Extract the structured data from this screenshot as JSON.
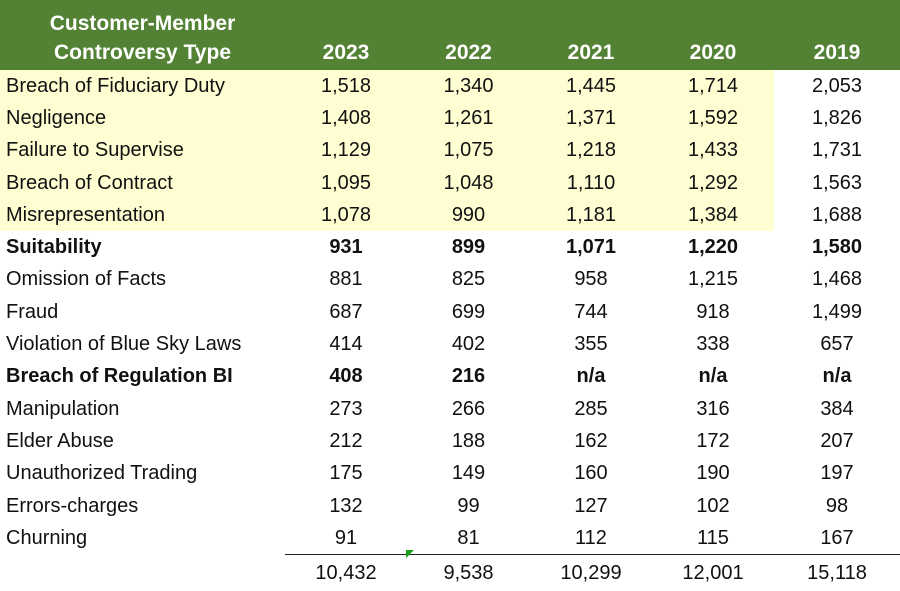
{
  "header": {
    "title_line1": "Customer-Member",
    "title_line2": "Controversy Type",
    "years": [
      "2023",
      "2022",
      "2021",
      "2020",
      "2019"
    ]
  },
  "rows": [
    {
      "label": "Breach of Fiduciary Duty",
      "values": [
        "1,518",
        "1,340",
        "1,445",
        "1,714",
        "2,053"
      ]
    },
    {
      "label": "Negligence",
      "values": [
        "1,408",
        "1,261",
        "1,371",
        "1,592",
        "1,826"
      ]
    },
    {
      "label": "Failure to Supervise",
      "values": [
        "1,129",
        "1,075",
        "1,218",
        "1,433",
        "1,731"
      ]
    },
    {
      "label": "Breach of Contract",
      "values": [
        "1,095",
        "1,048",
        "1,110",
        "1,292",
        "1,563"
      ]
    },
    {
      "label": "Misrepresentation",
      "values": [
        "1,078",
        "990",
        "1,181",
        "1,384",
        "1,688"
      ]
    },
    {
      "label": "Suitability",
      "values": [
        "931",
        "899",
        "1,071",
        "1,220",
        "1,580"
      ]
    },
    {
      "label": "Omission of Facts",
      "values": [
        "881",
        "825",
        "958",
        "1,215",
        "1,468"
      ]
    },
    {
      "label": "Fraud",
      "values": [
        "687",
        "699",
        "744",
        "918",
        "1,499"
      ]
    },
    {
      "label": "Violation of Blue Sky Laws",
      "values": [
        "414",
        "402",
        "355",
        "338",
        "657"
      ]
    },
    {
      "label": "Breach of Regulation BI",
      "values": [
        "408",
        "216",
        "n/a",
        "n/a",
        "n/a"
      ]
    },
    {
      "label": "Manipulation",
      "values": [
        "273",
        "266",
        "285",
        "316",
        "384"
      ]
    },
    {
      "label": "Elder Abuse",
      "values": [
        "212",
        "188",
        "162",
        "172",
        "207"
      ]
    },
    {
      "label": "Unauthorized Trading",
      "values": [
        "175",
        "149",
        "160",
        "190",
        "197"
      ]
    },
    {
      "label": "Errors-charges",
      "values": [
        "132",
        "99",
        "127",
        "102",
        "98"
      ]
    },
    {
      "label": "Churning",
      "values": [
        "91",
        "81",
        "112",
        "115",
        "167"
      ]
    }
  ],
  "totals": [
    "10,432",
    "9,538",
    "10,299",
    "12,001",
    "15,118"
  ],
  "colors": {
    "header_bg": "#548235",
    "highlight_bg": "#fffed2",
    "error_indicator": "#1a9e1a"
  }
}
